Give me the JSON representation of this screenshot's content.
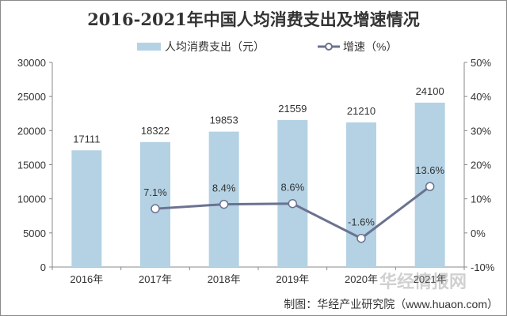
{
  "chart_data": {
    "type": "bar+line",
    "title": "2016-2021年中国人均消费支出及增速情况",
    "categories": [
      "2016年",
      "2017年",
      "2018年",
      "2019年",
      "2020年",
      "2021年"
    ],
    "series": [
      {
        "name": "人均消费支出（元）",
        "type": "bar",
        "axis": "left",
        "color": "#b4d2e4",
        "values": [
          17111,
          18322,
          19853,
          21559,
          21210,
          24100
        ],
        "labels": [
          "17111",
          "18322",
          "19853",
          "21559",
          "21210",
          "24100"
        ]
      },
      {
        "name": "增速（%）",
        "type": "line",
        "axis": "right",
        "color": "#6b7290",
        "values": [
          null,
          7.1,
          8.4,
          8.6,
          -1.6,
          13.6
        ],
        "labels": [
          "",
          "7.1%",
          "8.4%",
          "8.6%",
          "-1.6%",
          "13.6%"
        ]
      }
    ],
    "left_axis": {
      "ylim": [
        0,
        30000
      ],
      "ticks": [
        "0",
        "5000",
        "10000",
        "15000",
        "20000",
        "25000",
        "30000"
      ]
    },
    "right_axis": {
      "ylim": [
        -10,
        50
      ],
      "ticks": [
        "-10%",
        "0%",
        "10%",
        "20%",
        "30%",
        "40%",
        "50%"
      ]
    },
    "legend": "top",
    "grid": false
  },
  "source": "制图：华经产业研究院（www.huaon.com）",
  "watermark": "华经情报网 huaon.com"
}
